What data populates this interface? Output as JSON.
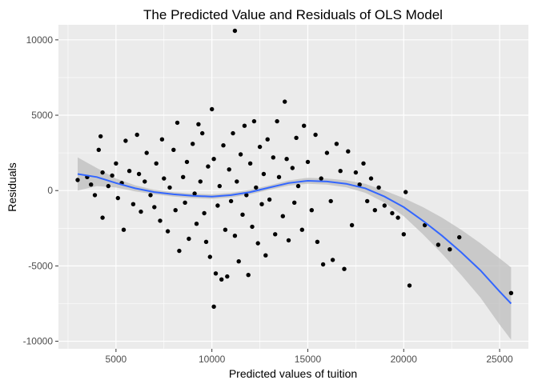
{
  "chart_data": {
    "type": "scatter",
    "title": "The Predicted Value and Residuals of OLS Model",
    "xlabel": "Predicted values of tuition",
    "ylabel": "Residuals",
    "xlim": [
      2000,
      26500
    ],
    "ylim": [
      -10500,
      11000
    ],
    "x_ticks": [
      5000,
      10000,
      15000,
      20000,
      25000
    ],
    "x_tick_labels": [
      "5000",
      "10000",
      "15000",
      "20000",
      "25000"
    ],
    "y_ticks": [
      -10000,
      -5000,
      0,
      5000,
      10000
    ],
    "y_tick_labels": [
      "-10000",
      "-5000",
      "0",
      "5000",
      "10000"
    ],
    "grid": true,
    "colors": {
      "panel": "#ebebeb",
      "grid_major": "#ffffff",
      "points": "#000000",
      "smooth_line": "#3366ff",
      "confidence_band": "#bdbdbd"
    },
    "smooth": {
      "x": [
        3000,
        4000,
        5000,
        6000,
        7000,
        8000,
        9000,
        10000,
        11000,
        12000,
        13000,
        14000,
        15000,
        16000,
        17000,
        18000,
        19000,
        20000,
        21000,
        22000,
        23000,
        24000,
        25000,
        25600
      ],
      "y": [
        1100,
        900,
        500,
        150,
        -100,
        -250,
        -350,
        -400,
        -300,
        -100,
        200,
        500,
        650,
        600,
        450,
        150,
        -400,
        -1100,
        -2000,
        -3000,
        -4100,
        -5300,
        -6700,
        -7500
      ],
      "lower": [
        0,
        300,
        200,
        -50,
        -250,
        -400,
        -500,
        -550,
        -450,
        -250,
        50,
        330,
        450,
        400,
        220,
        -150,
        -800,
        -1700,
        -2900,
        -4200,
        -5600,
        -7100,
        -8900,
        -9900
      ],
      "upper": [
        2200,
        1500,
        800,
        350,
        50,
        -100,
        -200,
        -250,
        -150,
        50,
        350,
        670,
        850,
        800,
        680,
        450,
        0,
        -500,
        -1100,
        -1800,
        -2600,
        -3500,
        -4500,
        -5100
      ]
    },
    "points": [
      [
        3000,
        700
      ],
      [
        3500,
        900
      ],
      [
        3700,
        400
      ],
      [
        3900,
        -300
      ],
      [
        4100,
        2700
      ],
      [
        4200,
        3600
      ],
      [
        4300,
        1200
      ],
      [
        4300,
        -1800
      ],
      [
        4600,
        300
      ],
      [
        4800,
        1000
      ],
      [
        5000,
        1800
      ],
      [
        5100,
        -500
      ],
      [
        5300,
        500
      ],
      [
        5400,
        -2600
      ],
      [
        5500,
        3300
      ],
      [
        5700,
        1300
      ],
      [
        5900,
        -900
      ],
      [
        6100,
        3700
      ],
      [
        6200,
        1100
      ],
      [
        6300,
        -1400
      ],
      [
        6500,
        600
      ],
      [
        6600,
        2500
      ],
      [
        6800,
        -300
      ],
      [
        7000,
        -1100
      ],
      [
        7100,
        1800
      ],
      [
        7300,
        -2000
      ],
      [
        7400,
        3400
      ],
      [
        7500,
        800
      ],
      [
        7700,
        -2700
      ],
      [
        7800,
        200
      ],
      [
        8000,
        2700
      ],
      [
        8100,
        -1300
      ],
      [
        8200,
        4500
      ],
      [
        8300,
        -4000
      ],
      [
        8500,
        900
      ],
      [
        8600,
        -800
      ],
      [
        8700,
        1900
      ],
      [
        8800,
        -3200
      ],
      [
        9000,
        3100
      ],
      [
        9100,
        -200
      ],
      [
        9200,
        -2200
      ],
      [
        9300,
        4400
      ],
      [
        9400,
        600
      ],
      [
        9500,
        3800
      ],
      [
        9600,
        -1500
      ],
      [
        9700,
        -3400
      ],
      [
        9800,
        1600
      ],
      [
        9900,
        -4400
      ],
      [
        10000,
        5400
      ],
      [
        10100,
        2100
      ],
      [
        10100,
        -7700
      ],
      [
        10200,
        -5500
      ],
      [
        10300,
        -1000
      ],
      [
        10400,
        300
      ],
      [
        10500,
        -5900
      ],
      [
        10600,
        3000
      ],
      [
        10700,
        -2600
      ],
      [
        10800,
        -5700
      ],
      [
        10900,
        1400
      ],
      [
        11000,
        -700
      ],
      [
        11100,
        3800
      ],
      [
        11200,
        -3000
      ],
      [
        11200,
        10600
      ],
      [
        11300,
        600
      ],
      [
        11400,
        -4700
      ],
      [
        11500,
        2400
      ],
      [
        11600,
        -1600
      ],
      [
        11700,
        4300
      ],
      [
        11800,
        -300
      ],
      [
        11900,
        -5600
      ],
      [
        12000,
        1800
      ],
      [
        12100,
        -2400
      ],
      [
        12200,
        4600
      ],
      [
        12300,
        200
      ],
      [
        12400,
        -3500
      ],
      [
        12500,
        2900
      ],
      [
        12600,
        -900
      ],
      [
        12700,
        1100
      ],
      [
        12800,
        -4300
      ],
      [
        12900,
        3400
      ],
      [
        13000,
        -600
      ],
      [
        13200,
        2200
      ],
      [
        13300,
        -2900
      ],
      [
        13400,
        4600
      ],
      [
        13500,
        900
      ],
      [
        13700,
        -1700
      ],
      [
        13800,
        5900
      ],
      [
        13900,
        2100
      ],
      [
        14000,
        -3300
      ],
      [
        14200,
        1500
      ],
      [
        14300,
        -800
      ],
      [
        14400,
        3500
      ],
      [
        14500,
        300
      ],
      [
        14700,
        -2600
      ],
      [
        14800,
        4300
      ],
      [
        15000,
        1900
      ],
      [
        15200,
        -1300
      ],
      [
        15400,
        3700
      ],
      [
        15500,
        -3400
      ],
      [
        15700,
        800
      ],
      [
        15800,
        -4900
      ],
      [
        16000,
        2500
      ],
      [
        16200,
        -700
      ],
      [
        16300,
        -4600
      ],
      [
        16500,
        3100
      ],
      [
        16700,
        1300
      ],
      [
        16900,
        -5200
      ],
      [
        17100,
        2600
      ],
      [
        17300,
        -2300
      ],
      [
        17500,
        1200
      ],
      [
        17700,
        400
      ],
      [
        17900,
        1800
      ],
      [
        18100,
        -700
      ],
      [
        18300,
        800
      ],
      [
        18500,
        -1300
      ],
      [
        18700,
        200
      ],
      [
        19000,
        -1000
      ],
      [
        19400,
        -1500
      ],
      [
        19700,
        -1800
      ],
      [
        20000,
        -2900
      ],
      [
        20100,
        -100
      ],
      [
        20300,
        -6300
      ],
      [
        21100,
        -2300
      ],
      [
        21800,
        -3600
      ],
      [
        22400,
        -3900
      ],
      [
        22900,
        -3100
      ],
      [
        25600,
        -6800
      ]
    ]
  }
}
